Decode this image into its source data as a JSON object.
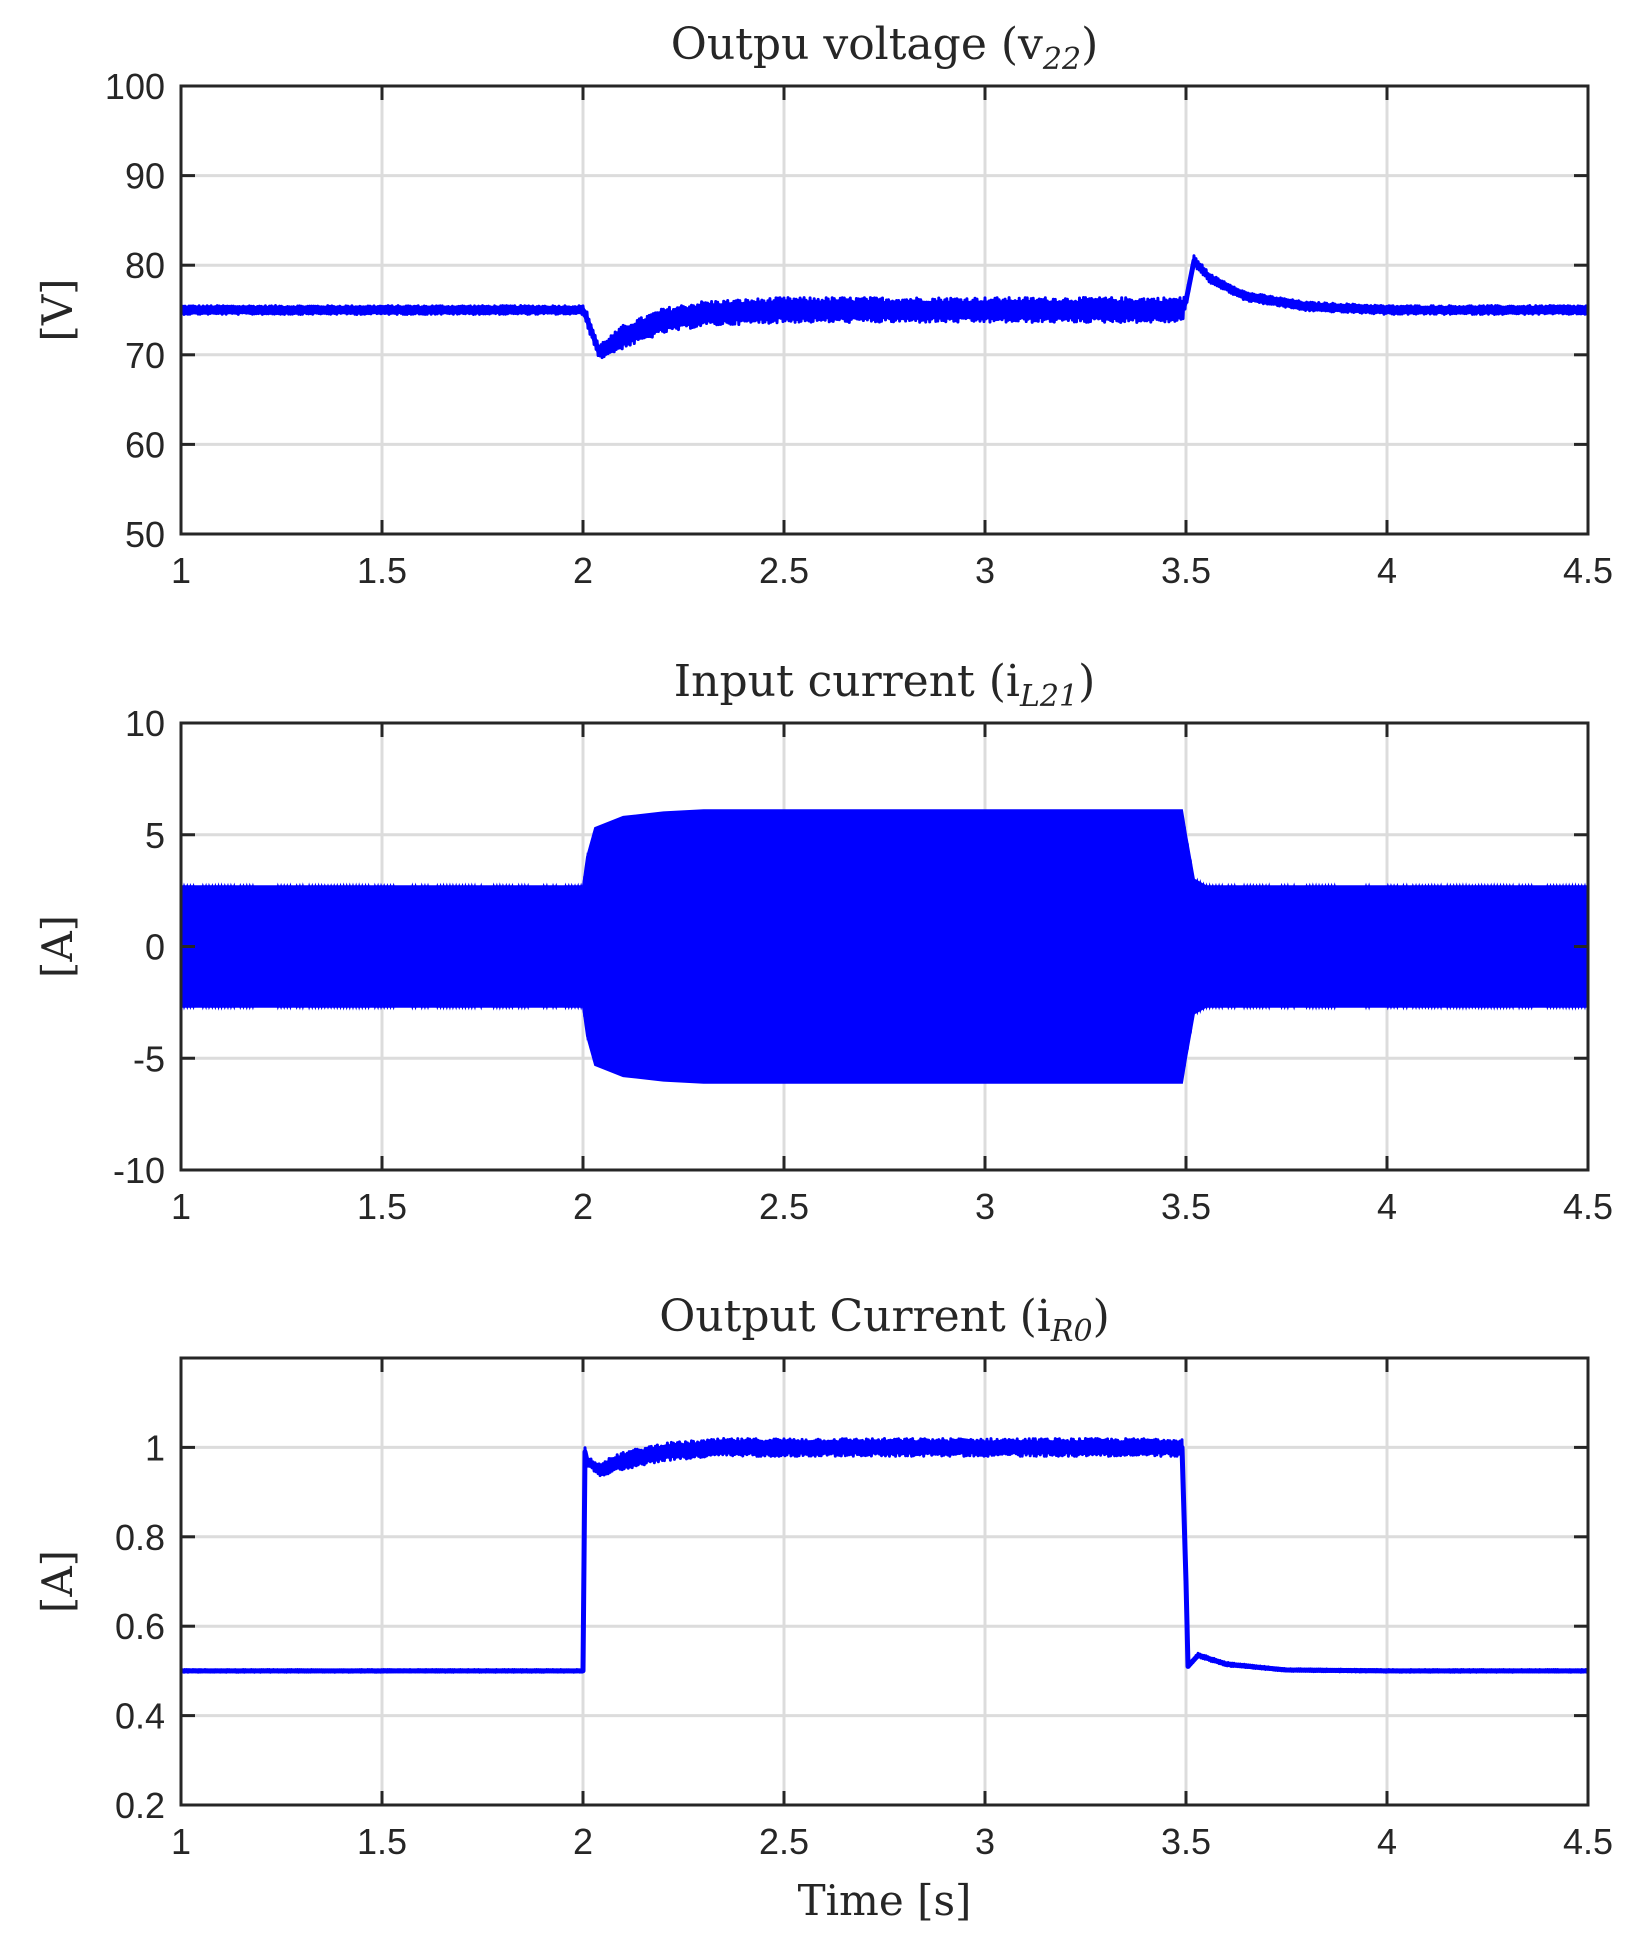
{
  "colors": {
    "series": "#0000ff",
    "grid": "#dcdcdc",
    "axis": "#262626"
  },
  "chart_data": [
    {
      "type": "line",
      "title": "Outpu voltage (v",
      "title_sub": "22",
      "title_close": ")",
      "xlabel": "",
      "ylabel": "[V]",
      "xlim": [
        1,
        4.5
      ],
      "ylim": [
        50,
        100
      ],
      "xticks": [
        1,
        1.5,
        2,
        2.5,
        3,
        3.5,
        4,
        4.5
      ],
      "yticks": [
        50,
        60,
        70,
        80,
        90,
        100
      ],
      "xtick_labels": [
        "1",
        "1.5",
        "2",
        "2.5",
        "3",
        "3.5",
        "4",
        "4.5"
      ],
      "ytick_labels": [
        "50",
        "60",
        "70",
        "80",
        "90",
        "100"
      ],
      "grid": true,
      "series": [
        {
          "x": [
            1.0,
            2.0,
            2.01,
            2.04,
            2.1,
            2.2,
            2.3,
            2.5,
            3.0,
            3.49,
            3.5,
            3.52,
            3.56,
            3.65,
            3.8,
            4.0,
            4.5
          ],
          "y": [
            75,
            75,
            74,
            70.3,
            72,
            73.8,
            74.6,
            75,
            75,
            75,
            76,
            80.5,
            78.5,
            76.5,
            75.4,
            75,
            75
          ],
          "ripple": [
            0.5,
            0.5,
            0.8,
            0.8,
            1.3,
            1.4,
            1.4,
            1.4,
            1.4,
            1.4,
            0.8,
            0.6,
            0.5,
            0.5,
            0.5,
            0.5,
            0.5
          ]
        }
      ]
    },
    {
      "type": "line",
      "title": "Input current (i",
      "title_sub": "L21",
      "title_close": ")",
      "xlabel": "",
      "ylabel": "[A]",
      "xlim": [
        1,
        4.5
      ],
      "ylim": [
        -10,
        10
      ],
      "xticks": [
        1,
        1.5,
        2,
        2.5,
        3,
        3.5,
        4,
        4.5
      ],
      "yticks": [
        -10,
        -5,
        0,
        5,
        10
      ],
      "xtick_labels": [
        "1",
        "1.5",
        "2",
        "2.5",
        "3",
        "3.5",
        "4",
        "4.5"
      ],
      "ytick_labels": [
        "-10",
        "-5",
        "0",
        "5",
        "10"
      ],
      "grid": true,
      "series": [
        {
          "x": [
            1.0,
            2.0,
            2.01,
            2.03,
            2.1,
            2.2,
            2.3,
            3.0,
            3.49,
            3.5,
            3.52,
            3.55,
            4.5
          ],
          "y_upper": [
            2.7,
            2.7,
            4.0,
            5.3,
            5.8,
            6.0,
            6.1,
            6.1,
            6.1,
            5.0,
            3.0,
            2.7,
            2.7
          ],
          "y_lower": [
            -2.7,
            -2.7,
            -4.0,
            -5.3,
            -5.8,
            -6.0,
            -6.1,
            -6.1,
            -6.1,
            -5.0,
            -3.0,
            -2.7,
            -2.7
          ]
        }
      ]
    },
    {
      "type": "line",
      "title": "Output Current (i",
      "title_sub": "R0",
      "title_close": ")",
      "xlabel": "Time [s]",
      "ylabel": "[A]",
      "xlim": [
        1,
        4.5
      ],
      "ylim": [
        0.2,
        1.2
      ],
      "xticks": [
        1,
        1.5,
        2,
        2.5,
        3,
        3.5,
        4,
        4.5
      ],
      "yticks": [
        0.2,
        0.4,
        0.6,
        0.8,
        1
      ],
      "xtick_labels": [
        "1",
        "1.5",
        "2",
        "2.5",
        "3",
        "3.5",
        "4",
        "4.5"
      ],
      "ytick_labels": [
        "0.2",
        "0.4",
        "0.6",
        "0.8",
        "1"
      ],
      "grid": true,
      "series": [
        {
          "x": [
            1.0,
            2.0,
            2.005,
            2.01,
            2.04,
            2.1,
            2.2,
            2.35,
            2.5,
            3.0,
            3.49,
            3.5,
            3.505,
            3.53,
            3.6,
            3.75,
            4.0,
            4.5
          ],
          "y": [
            0.5,
            0.5,
            0.99,
            0.97,
            0.95,
            0.97,
            0.99,
            1.0,
            1.0,
            1.0,
            1.0,
            0.7,
            0.51,
            0.535,
            0.515,
            0.502,
            0.5,
            0.5
          ],
          "ripple": [
            0.003,
            0.003,
            0.01,
            0.01,
            0.015,
            0.02,
            0.02,
            0.02,
            0.02,
            0.02,
            0.02,
            0.005,
            0.005,
            0.005,
            0.004,
            0.003,
            0.003,
            0.003
          ]
        }
      ]
    }
  ]
}
